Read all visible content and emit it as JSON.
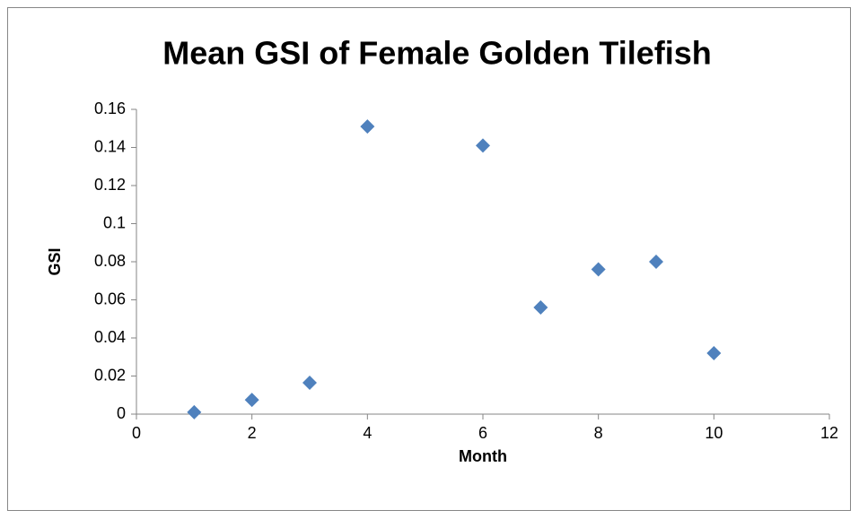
{
  "chart_data": {
    "type": "scatter",
    "title": "Mean GSI of Female Golden Tilefish",
    "x_label": "Month",
    "y_label": "GSI",
    "x": [
      1,
      2,
      3,
      4,
      6,
      7,
      8,
      9,
      10
    ],
    "values": [
      0.001,
      0.0075,
      0.0165,
      0.151,
      0.141,
      0.056,
      0.076,
      0.08,
      0.032
    ],
    "color": "#4f81bd",
    "xlim": [
      0,
      12
    ],
    "xticks": [
      0,
      2,
      4,
      6,
      8,
      10,
      12
    ],
    "ylim": [
      0,
      0.16
    ],
    "yticks": [
      0,
      0.02,
      0.04,
      0.06,
      0.08,
      0.1,
      0.12,
      0.14,
      0.16
    ],
    "grid": false
  }
}
